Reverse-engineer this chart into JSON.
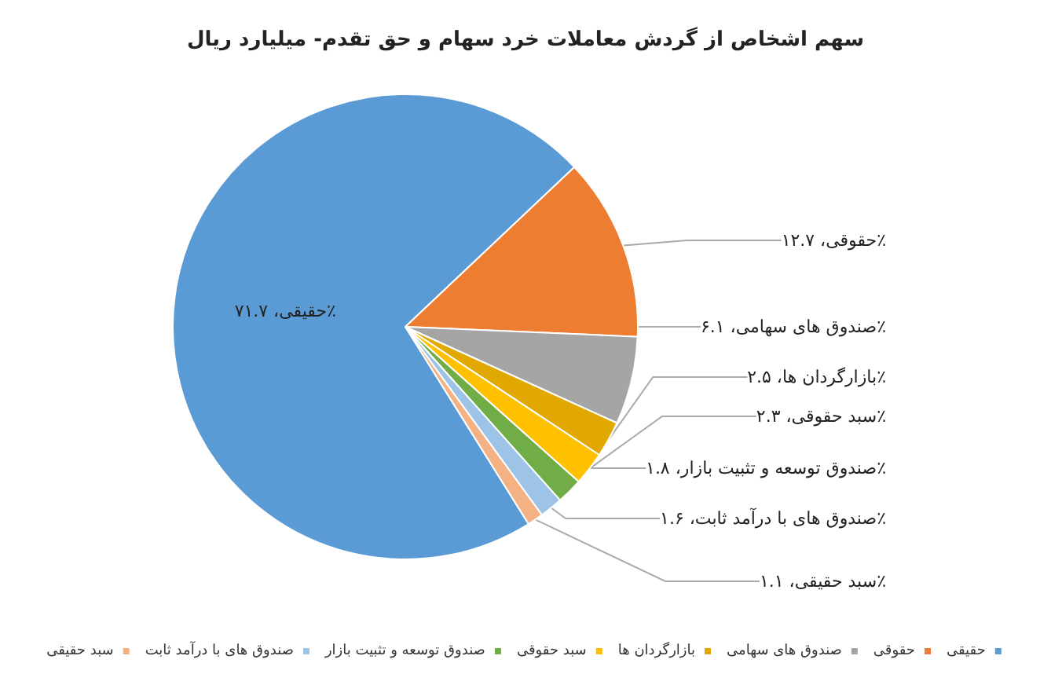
{
  "chart_data": {
    "type": "pie",
    "title": "سهم اشخاص از گردش معاملات خرد سهام و حق تقدم- میلیارد ریال",
    "categories": [
      "حقیقی",
      "حقوقی",
      "صندوق های سهامی",
      "بازارگردان ها",
      "سبد حقوقی",
      "صندوق توسعه و تثبیت بازار",
      "صندوق های با درآمد ثابت",
      "سبد حقیقی"
    ],
    "values": [
      71.7,
      12.7,
      6.1,
      2.5,
      2.3,
      1.8,
      1.6,
      1.1
    ],
    "colors": [
      "#5b9bd5",
      "#ed7d31",
      "#a5a5a5",
      "#e0a800",
      "#ffc000",
      "#70ad47",
      "#9dc3e6",
      "#f4b183"
    ],
    "value_labels": [
      "حقیقی، ۷۱.۷٪",
      "حقوقی، ۱۲.۷٪",
      "صندوق های سهامی، ۶.۱٪",
      "بازارگردان ها، ۲.۵٪",
      "سبد حقوقی، ۲.۳٪",
      "صندوق توسعه و تثبیت بازار، ۱.۸٪",
      "صندوق های با درآمد ثابت، ۱.۶٪",
      "سبد حقیقی، ۱.۱٪"
    ],
    "legend": "bottom"
  }
}
